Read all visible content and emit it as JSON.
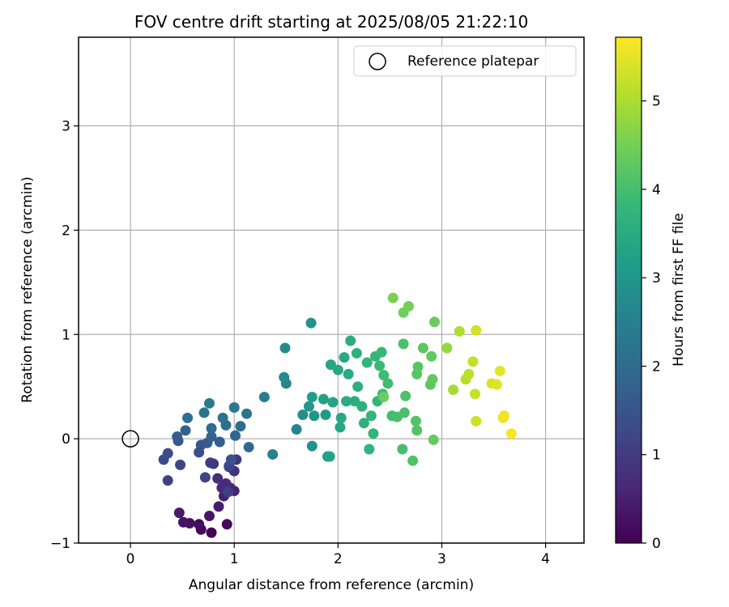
{
  "chart_data": {
    "type": "scatter",
    "title": "FOV centre drift starting at 2025/08/05 21:22:10",
    "xlabel": "Angular distance from reference (arcmin)",
    "ylabel": "Rotation from reference (arcmin)",
    "xlim": [
      -0.5,
      4.37
    ],
    "ylim": [
      -1.0,
      3.85
    ],
    "x_ticks": [
      0,
      1,
      2,
      3,
      4
    ],
    "x_tick_labels": [
      "0",
      "1",
      "2",
      "3",
      "4"
    ],
    "y_ticks": [
      -1,
      0,
      1,
      2,
      3
    ],
    "y_tick_labels": [
      "−1",
      "0",
      "1",
      "2",
      "3"
    ],
    "grid": true,
    "legend": {
      "placement": "top-right",
      "entries": [
        "Reference platepar"
      ]
    },
    "reference_point": {
      "x": 0,
      "y": 0,
      "label": "Reference platepar"
    },
    "colorbar": {
      "label": "Hours from first FF file",
      "range": [
        0,
        5.72
      ],
      "ticks": [
        0,
        1,
        2,
        3,
        4,
        5
      ],
      "tick_labels": [
        "0",
        "1",
        "2",
        "3",
        "4",
        "5"
      ],
      "colormap": "viridis",
      "colors": [
        "#440154",
        "#482878",
        "#3e4989",
        "#31688e",
        "#26828e",
        "#1f9e89",
        "#35b779",
        "#6ece58",
        "#b5de2b",
        "#fde725"
      ]
    },
    "points": [
      {
        "x": 0.78,
        "y": -0.9,
        "t": 0.05
      },
      {
        "x": 0.68,
        "y": -0.87,
        "t": 0.1
      },
      {
        "x": 0.93,
        "y": -0.82,
        "t": 0.15
      },
      {
        "x": 0.66,
        "y": -0.82,
        "t": 0.2
      },
      {
        "x": 0.57,
        "y": -0.81,
        "t": 0.25
      },
      {
        "x": 0.51,
        "y": -0.8,
        "t": 0.3
      },
      {
        "x": 0.76,
        "y": -0.74,
        "t": 0.35
      },
      {
        "x": 0.47,
        "y": -0.71,
        "t": 0.4
      },
      {
        "x": 0.85,
        "y": -0.65,
        "t": 0.45
      },
      {
        "x": 0.9,
        "y": -0.55,
        "t": 0.5
      },
      {
        "x": 1.0,
        "y": -0.5,
        "t": 0.55
      },
      {
        "x": 0.96,
        "y": -0.47,
        "t": 0.6
      },
      {
        "x": 0.88,
        "y": -0.47,
        "t": 0.65
      },
      {
        "x": 0.92,
        "y": -0.43,
        "t": 0.7
      },
      {
        "x": 0.84,
        "y": -0.38,
        "t": 0.75
      },
      {
        "x": 1.0,
        "y": -0.31,
        "t": 0.8
      },
      {
        "x": 1.02,
        "y": -0.2,
        "t": 0.85
      },
      {
        "x": 0.95,
        "y": -0.27,
        "t": 0.9
      },
      {
        "x": 0.8,
        "y": -0.24,
        "t": 0.95
      },
      {
        "x": 0.77,
        "y": -0.23,
        "t": 1.0
      },
      {
        "x": 0.94,
        "y": -0.51,
        "t": 1.05
      },
      {
        "x": 0.36,
        "y": -0.4,
        "t": 1.1
      },
      {
        "x": 0.72,
        "y": -0.37,
        "t": 1.15
      },
      {
        "x": 0.48,
        "y": -0.25,
        "t": 1.2
      },
      {
        "x": 0.95,
        "y": -0.26,
        "t": 1.25
      },
      {
        "x": 0.32,
        "y": -0.2,
        "t": 1.3
      },
      {
        "x": 0.36,
        "y": -0.14,
        "t": 1.35
      },
      {
        "x": 0.66,
        "y": -0.13,
        "t": 1.4
      },
      {
        "x": 0.97,
        "y": -0.2,
        "t": 1.45
      },
      {
        "x": 0.68,
        "y": -0.06,
        "t": 1.5
      },
      {
        "x": 0.46,
        "y": -0.02,
        "t": 1.55
      },
      {
        "x": 0.74,
        "y": -0.04,
        "t": 1.6
      },
      {
        "x": 0.45,
        "y": 0.02,
        "t": 1.65
      },
      {
        "x": 0.86,
        "y": -0.03,
        "t": 1.7
      },
      {
        "x": 0.53,
        "y": 0.08,
        "t": 1.75
      },
      {
        "x": 0.78,
        "y": 0.02,
        "t": 1.8
      },
      {
        "x": 1.01,
        "y": 0.03,
        "t": 1.85
      },
      {
        "x": 1.14,
        "y": -0.08,
        "t": 1.9
      },
      {
        "x": 0.78,
        "y": 0.1,
        "t": 1.95
      },
      {
        "x": 1.06,
        "y": 0.12,
        "t": 2.0
      },
      {
        "x": 0.92,
        "y": 0.13,
        "t": 2.05
      },
      {
        "x": 0.55,
        "y": 0.2,
        "t": 2.1
      },
      {
        "x": 0.89,
        "y": 0.2,
        "t": 2.15
      },
      {
        "x": 0.71,
        "y": 0.25,
        "t": 2.2
      },
      {
        "x": 1.12,
        "y": 0.24,
        "t": 2.25
      },
      {
        "x": 1.0,
        "y": 0.3,
        "t": 2.3
      },
      {
        "x": 0.76,
        "y": 0.34,
        "t": 2.35
      },
      {
        "x": 1.29,
        "y": 0.4,
        "t": 2.45
      },
      {
        "x": 1.37,
        "y": -0.15,
        "t": 2.55
      },
      {
        "x": 1.6,
        "y": 0.09,
        "t": 2.6
      },
      {
        "x": 1.5,
        "y": 0.53,
        "t": 2.65
      },
      {
        "x": 1.48,
        "y": 0.59,
        "t": 2.75
      },
      {
        "x": 1.49,
        "y": 0.87,
        "t": 2.8
      },
      {
        "x": 1.66,
        "y": 0.23,
        "t": 2.85
      },
      {
        "x": 1.75,
        "y": -0.07,
        "t": 2.9
      },
      {
        "x": 1.74,
        "y": 1.11,
        "t": 2.95
      },
      {
        "x": 1.77,
        "y": 0.22,
        "t": 3.0
      },
      {
        "x": 1.72,
        "y": 0.31,
        "t": 3.05
      },
      {
        "x": 1.88,
        "y": 0.23,
        "t": 3.1
      },
      {
        "x": 1.9,
        "y": -0.17,
        "t": 3.15
      },
      {
        "x": 1.75,
        "y": 0.4,
        "t": 3.2
      },
      {
        "x": 1.86,
        "y": 0.38,
        "t": 3.25
      },
      {
        "x": 1.92,
        "y": -0.17,
        "t": 3.3
      },
      {
        "x": 1.95,
        "y": 0.35,
        "t": 3.35
      },
      {
        "x": 1.93,
        "y": 0.71,
        "t": 3.35
      },
      {
        "x": 2.0,
        "y": 0.66,
        "t": 3.4
      },
      {
        "x": 2.02,
        "y": 0.11,
        "t": 3.4
      },
      {
        "x": 2.03,
        "y": 0.2,
        "t": 3.45
      },
      {
        "x": 2.06,
        "y": 0.78,
        "t": 3.45
      },
      {
        "x": 2.08,
        "y": 0.36,
        "t": 3.5
      },
      {
        "x": 2.1,
        "y": 0.62,
        "t": 3.5
      },
      {
        "x": 2.12,
        "y": 0.94,
        "t": 3.55
      },
      {
        "x": 2.16,
        "y": 0.36,
        "t": 3.55
      },
      {
        "x": 2.18,
        "y": 0.82,
        "t": 3.6
      },
      {
        "x": 2.19,
        "y": 0.5,
        "t": 3.6
      },
      {
        "x": 2.23,
        "y": 0.31,
        "t": 3.65
      },
      {
        "x": 2.25,
        "y": 0.15,
        "t": 3.65
      },
      {
        "x": 2.28,
        "y": 0.73,
        "t": 3.7
      },
      {
        "x": 2.3,
        "y": -0.1,
        "t": 3.7
      },
      {
        "x": 2.32,
        "y": 0.22,
        "t": 3.75
      },
      {
        "x": 2.34,
        "y": 0.05,
        "t": 3.75
      },
      {
        "x": 2.36,
        "y": 0.79,
        "t": 3.8
      },
      {
        "x": 2.38,
        "y": 0.36,
        "t": 3.8
      },
      {
        "x": 2.4,
        "y": 0.7,
        "t": 3.85
      },
      {
        "x": 2.42,
        "y": 0.83,
        "t": 3.85
      },
      {
        "x": 2.43,
        "y": 0.43,
        "t": 3.9
      },
      {
        "x": 2.44,
        "y": 0.61,
        "t": 3.9
      },
      {
        "x": 2.48,
        "y": 0.53,
        "t": 3.95
      },
      {
        "x": 2.52,
        "y": 0.22,
        "t": 3.95
      },
      {
        "x": 2.57,
        "y": 0.21,
        "t": 4.0
      },
      {
        "x": 2.62,
        "y": -0.1,
        "t": 4.0
      },
      {
        "x": 2.63,
        "y": 0.91,
        "t": 4.05
      },
      {
        "x": 2.64,
        "y": 0.25,
        "t": 4.05
      },
      {
        "x": 2.65,
        "y": 0.41,
        "t": 4.1
      },
      {
        "x": 2.72,
        "y": -0.21,
        "t": 4.1
      },
      {
        "x": 2.75,
        "y": 0.17,
        "t": 4.15
      },
      {
        "x": 2.76,
        "y": 0.08,
        "t": 4.15
      },
      {
        "x": 2.76,
        "y": 0.62,
        "t": 4.2
      },
      {
        "x": 2.77,
        "y": 0.69,
        "t": 4.2
      },
      {
        "x": 2.82,
        "y": 0.87,
        "t": 4.25
      },
      {
        "x": 2.89,
        "y": 0.52,
        "t": 4.25
      },
      {
        "x": 2.9,
        "y": 0.79,
        "t": 4.3
      },
      {
        "x": 2.91,
        "y": 0.57,
        "t": 4.3
      },
      {
        "x": 2.92,
        "y": -0.01,
        "t": 4.35
      },
      {
        "x": 2.93,
        "y": 1.12,
        "t": 4.4
      },
      {
        "x": 2.44,
        "y": 0.4,
        "t": 4.4
      },
      {
        "x": 2.63,
        "y": 1.21,
        "t": 4.45
      },
      {
        "x": 2.68,
        "y": 1.27,
        "t": 4.5
      },
      {
        "x": 2.53,
        "y": 1.35,
        "t": 4.55
      },
      {
        "x": 3.05,
        "y": 0.87,
        "t": 4.8
      },
      {
        "x": 3.11,
        "y": 0.47,
        "t": 4.95
      },
      {
        "x": 3.17,
        "y": 1.03,
        "t": 5.05
      },
      {
        "x": 3.23,
        "y": 0.57,
        "t": 5.1
      },
      {
        "x": 3.26,
        "y": 0.62,
        "t": 5.15
      },
      {
        "x": 3.3,
        "y": 0.74,
        "t": 5.2
      },
      {
        "x": 3.32,
        "y": 0.43,
        "t": 5.25
      },
      {
        "x": 3.33,
        "y": 0.17,
        "t": 5.3
      },
      {
        "x": 3.33,
        "y": 1.04,
        "t": 5.35
      },
      {
        "x": 3.48,
        "y": 0.53,
        "t": 5.4
      },
      {
        "x": 3.53,
        "y": 0.52,
        "t": 5.45
      },
      {
        "x": 3.56,
        "y": 0.65,
        "t": 5.5
      },
      {
        "x": 3.59,
        "y": 0.2,
        "t": 5.55
      },
      {
        "x": 3.6,
        "y": 0.22,
        "t": 5.6
      },
      {
        "x": 3.67,
        "y": 0.05,
        "t": 5.65
      }
    ]
  }
}
